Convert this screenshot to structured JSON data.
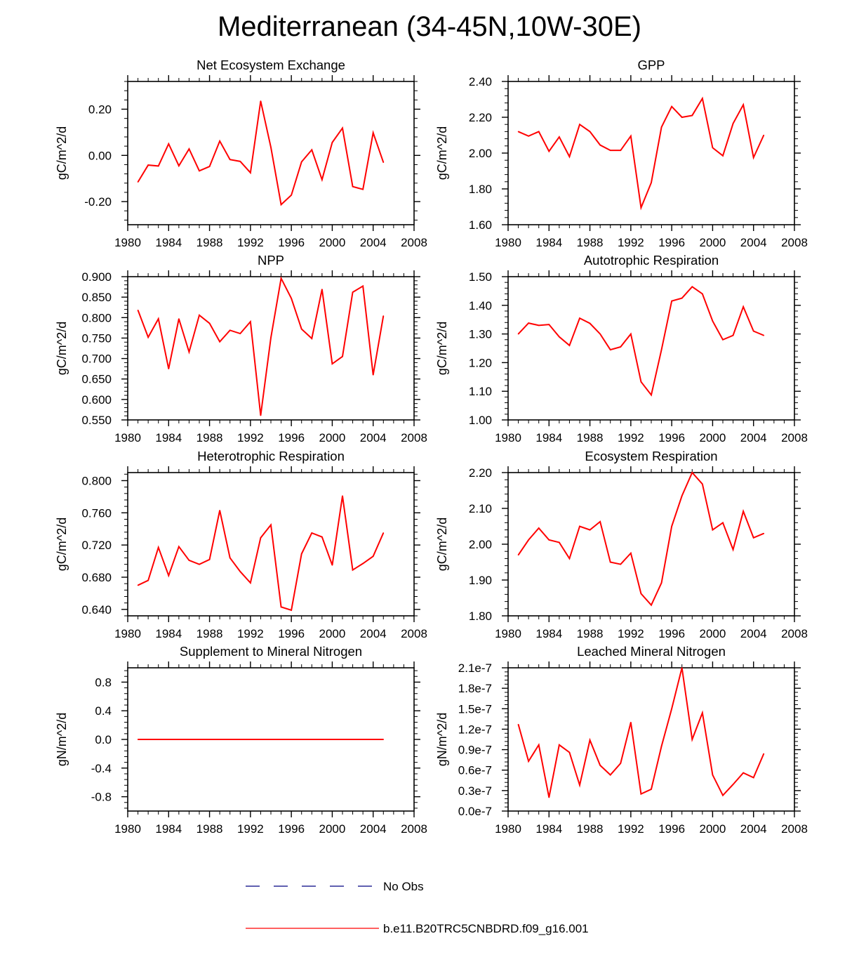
{
  "title": "Mediterranean (34-45N,10W-30E)",
  "colors": {
    "model": "#ff0000",
    "obs": "#000080",
    "axis": "#000000"
  },
  "chart_data": [
    {
      "type": "line",
      "title": "Net Ecosystem Exchange",
      "ylabel": "gC/m^2/d",
      "xlabel": "",
      "xlim": [
        1980,
        2008
      ],
      "xticks": [
        1980,
        1984,
        1988,
        1992,
        1996,
        2000,
        2004,
        2008
      ],
      "ylim": [
        -0.3,
        0.32
      ],
      "yticks": [
        -0.2,
        0.0,
        0.2
      ],
      "ytick_labels": [
        "-0.20",
        "0.00",
        "0.20"
      ],
      "x": [
        1981,
        1982,
        1983,
        1984,
        1985,
        1986,
        1987,
        1988,
        1989,
        1990,
        1991,
        1992,
        1993,
        1994,
        1995,
        1996,
        1997,
        1998,
        1999,
        2000,
        2001,
        2002,
        2003,
        2004,
        2005
      ],
      "series": [
        {
          "name": "b.e11.B20TRC5CNBDRD.f09_g16.001",
          "values": [
            -0.115,
            -0.042,
            -0.046,
            0.05,
            -0.045,
            0.028,
            -0.067,
            -0.048,
            0.062,
            -0.018,
            -0.026,
            -0.075,
            0.235,
            0.035,
            -0.213,
            -0.172,
            -0.028,
            0.024,
            -0.105,
            0.056,
            0.118,
            -0.135,
            -0.147,
            0.098,
            -0.03
          ]
        }
      ]
    },
    {
      "type": "line",
      "title": "GPP",
      "ylabel": "gC/m^2/d",
      "xlabel": "",
      "xlim": [
        1980,
        2008
      ],
      "xticks": [
        1980,
        1984,
        1988,
        1992,
        1996,
        2000,
        2004,
        2008
      ],
      "ylim": [
        1.6,
        2.4
      ],
      "yticks": [
        1.6,
        1.8,
        2.0,
        2.2,
        2.4
      ],
      "ytick_labels": [
        "1.60",
        "1.80",
        "2.00",
        "2.20",
        "2.40"
      ],
      "x": [
        1981,
        1982,
        1983,
        1984,
        1985,
        1986,
        1987,
        1988,
        1989,
        1990,
        1991,
        1992,
        1993,
        1994,
        1995,
        1996,
        1997,
        1998,
        1999,
        2000,
        2001,
        2002,
        2003,
        2004,
        2005
      ],
      "series": [
        {
          "name": "b.e11.B20TRC5CNBDRD.f09_g16.001",
          "values": [
            2.12,
            2.095,
            2.12,
            2.01,
            2.09,
            1.98,
            2.16,
            2.12,
            2.045,
            2.015,
            2.015,
            2.095,
            1.695,
            1.835,
            2.145,
            2.26,
            2.2,
            2.21,
            2.305,
            2.03,
            1.985,
            2.165,
            2.27,
            1.975,
            2.1
          ]
        }
      ]
    },
    {
      "type": "line",
      "title": "NPP",
      "ylabel": "gC/m^2/d",
      "xlabel": "",
      "xlim": [
        1980,
        2008
      ],
      "xticks": [
        1980,
        1984,
        1988,
        1992,
        1996,
        2000,
        2004,
        2008
      ],
      "ylim": [
        0.55,
        0.9
      ],
      "yticks": [
        0.55,
        0.6,
        0.65,
        0.7,
        0.75,
        0.8,
        0.85,
        0.9
      ],
      "ytick_labels": [
        "0.550",
        "0.600",
        "0.650",
        "0.700",
        "0.750",
        "0.800",
        "0.850",
        "0.900"
      ],
      "x": [
        1981,
        1982,
        1983,
        1984,
        1985,
        1986,
        1987,
        1988,
        1989,
        1990,
        1991,
        1992,
        1993,
        1994,
        1995,
        1996,
        1997,
        1998,
        1999,
        2000,
        2001,
        2002,
        2003,
        2004,
        2005
      ],
      "series": [
        {
          "name": "b.e11.B20TRC5CNBDRD.f09_g16.001",
          "values": [
            0.818,
            0.752,
            0.797,
            0.675,
            0.797,
            0.716,
            0.806,
            0.786,
            0.741,
            0.769,
            0.761,
            0.79,
            0.561,
            0.751,
            0.896,
            0.847,
            0.772,
            0.749,
            0.869,
            0.687,
            0.705,
            0.862,
            0.877,
            0.66,
            0.804
          ]
        }
      ]
    },
    {
      "type": "line",
      "title": "Autotrophic Respiration",
      "ylabel": "gC/m^2/d",
      "xlabel": "",
      "xlim": [
        1980,
        2008
      ],
      "xticks": [
        1980,
        1984,
        1988,
        1992,
        1996,
        2000,
        2004,
        2008
      ],
      "ylim": [
        1.0,
        1.5
      ],
      "yticks": [
        1.0,
        1.1,
        1.2,
        1.3,
        1.4,
        1.5
      ],
      "ytick_labels": [
        "1.00",
        "1.10",
        "1.20",
        "1.30",
        "1.40",
        "1.50"
      ],
      "x": [
        1981,
        1982,
        1983,
        1984,
        1985,
        1986,
        1987,
        1988,
        1989,
        1990,
        1991,
        1992,
        1993,
        1994,
        1995,
        1996,
        1997,
        1998,
        1999,
        2000,
        2001,
        2002,
        2003,
        2004,
        2005
      ],
      "series": [
        {
          "name": "b.e11.B20TRC5CNBDRD.f09_g16.001",
          "values": [
            1.3,
            1.338,
            1.33,
            1.333,
            1.29,
            1.26,
            1.355,
            1.337,
            1.3,
            1.245,
            1.255,
            1.3,
            1.133,
            1.087,
            1.245,
            1.415,
            1.425,
            1.465,
            1.44,
            1.345,
            1.28,
            1.295,
            1.395,
            1.31,
            1.295
          ]
        }
      ]
    },
    {
      "type": "line",
      "title": "Heterotrophic Respiration",
      "ylabel": "gC/m^2/d",
      "xlabel": "",
      "xlim": [
        1980,
        2008
      ],
      "xticks": [
        1980,
        1984,
        1988,
        1992,
        1996,
        2000,
        2004,
        2008
      ],
      "ylim": [
        0.632,
        0.81
      ],
      "yticks": [
        0.64,
        0.68,
        0.72,
        0.76,
        0.8
      ],
      "ytick_labels": [
        "0.640",
        "0.680",
        "0.720",
        "0.760",
        "0.800"
      ],
      "x": [
        1981,
        1982,
        1983,
        1984,
        1985,
        1986,
        1987,
        1988,
        1989,
        1990,
        1991,
        1992,
        1993,
        1994,
        1995,
        1996,
        1997,
        1998,
        1999,
        2000,
        2001,
        2002,
        2003,
        2004,
        2005
      ],
      "series": [
        {
          "name": "b.e11.B20TRC5CNBDRD.f09_g16.001",
          "values": [
            0.67,
            0.676,
            0.717,
            0.682,
            0.718,
            0.701,
            0.696,
            0.702,
            0.763,
            0.704,
            0.687,
            0.673,
            0.729,
            0.745,
            0.643,
            0.639,
            0.709,
            0.735,
            0.73,
            0.695,
            0.781,
            0.689,
            0.697,
            0.706,
            0.735
          ]
        }
      ]
    },
    {
      "type": "line",
      "title": "Ecosystem Respiration",
      "ylabel": "gC/m^2/d",
      "xlabel": "",
      "xlim": [
        1980,
        2008
      ],
      "xticks": [
        1980,
        1984,
        1988,
        1992,
        1996,
        2000,
        2004,
        2008
      ],
      "ylim": [
        1.8,
        2.2
      ],
      "yticks": [
        1.8,
        1.9,
        2.0,
        2.1,
        2.2
      ],
      "ytick_labels": [
        "1.80",
        "1.90",
        "2.00",
        "2.10",
        "2.20"
      ],
      "x": [
        1981,
        1982,
        1983,
        1984,
        1985,
        1986,
        1987,
        1988,
        1989,
        1990,
        1991,
        1992,
        1993,
        1994,
        1995,
        1996,
        1997,
        1998,
        1999,
        2000,
        2001,
        2002,
        2003,
        2004,
        2005
      ],
      "series": [
        {
          "name": "b.e11.B20TRC5CNBDRD.f09_g16.001",
          "values": [
            1.97,
            2.012,
            2.045,
            2.012,
            2.005,
            1.96,
            2.05,
            2.04,
            2.063,
            1.95,
            1.944,
            1.975,
            1.862,
            1.83,
            1.892,
            2.05,
            2.135,
            2.2,
            2.168,
            2.04,
            2.06,
            1.985,
            2.092,
            2.018,
            2.03
          ]
        }
      ]
    },
    {
      "type": "line",
      "title": "Supplement to Mineral Nitrogen",
      "ylabel": "gN/m^2/d",
      "xlabel": "",
      "xlim": [
        1980,
        2008
      ],
      "xticks": [
        1980,
        1984,
        1988,
        1992,
        1996,
        2000,
        2004,
        2008
      ],
      "ylim": [
        -1.0,
        1.0
      ],
      "yticks": [
        -0.8,
        -0.4,
        0.0,
        0.4,
        0.8
      ],
      "ytick_labels": [
        "-0.8",
        "-0.4",
        "0.0",
        "0.4",
        "0.8"
      ],
      "x": [
        1981,
        1982,
        1983,
        1984,
        1985,
        1986,
        1987,
        1988,
        1989,
        1990,
        1991,
        1992,
        1993,
        1994,
        1995,
        1996,
        1997,
        1998,
        1999,
        2000,
        2001,
        2002,
        2003,
        2004,
        2005
      ],
      "series": [
        {
          "name": "b.e11.B20TRC5CNBDRD.f09_g16.001",
          "values": [
            0,
            0,
            0,
            0,
            0,
            0,
            0,
            0,
            0,
            0,
            0,
            0,
            0,
            0,
            0,
            0,
            0,
            0,
            0,
            0,
            0,
            0,
            0,
            0,
            0
          ]
        }
      ]
    },
    {
      "type": "line",
      "title": "Leached Mineral Nitrogen",
      "ylabel": "gN/m^2/d",
      "xlabel": "",
      "xlim": [
        1980,
        2008
      ],
      "xticks": [
        1980,
        1984,
        1988,
        1992,
        1996,
        2000,
        2004,
        2008
      ],
      "ylim": [
        0,
        2.1e-07
      ],
      "yticks": [
        0,
        3e-08,
        6e-08,
        9e-08,
        1.2e-07,
        1.5e-07,
        1.8e-07,
        2.1e-07
      ],
      "ytick_labels": [
        "0.0e-7",
        "0.3e-7",
        "0.6e-7",
        "0.9e-7",
        "1.2e-7",
        "1.5e-7",
        "1.8e-7",
        "2.1e-7"
      ],
      "x": [
        1981,
        1982,
        1983,
        1984,
        1985,
        1986,
        1987,
        1988,
        1989,
        1990,
        1991,
        1992,
        1993,
        1994,
        1995,
        1996,
        1997,
        1998,
        1999,
        2000,
        2001,
        2002,
        2003,
        2004,
        2005
      ],
      "series": [
        {
          "name": "b.e11.B20TRC5CNBDRD.f09_g16.001",
          "values": [
            1.27e-07,
            7.3e-08,
            9.7e-08,
            2e-08,
            9.7e-08,
            8.6e-08,
            3.8e-08,
            1.04e-07,
            6.7e-08,
            5.3e-08,
            7e-08,
            1.3e-07,
            2.5e-08,
            3.2e-08,
            9.5e-08,
            1.5e-07,
            2.1e-07,
            1.05e-07,
            1.44e-07,
            5.3e-08,
            2.3e-08,
            3.9e-08,
            5.6e-08,
            4.9e-08,
            8.4e-08
          ]
        }
      ]
    }
  ],
  "legend": {
    "position": "bottom-center",
    "entries": [
      {
        "label": "No Obs",
        "style": "dashed"
      },
      {
        "label": "b.e11.B20TRC5CNBDRD.f09_g16.001",
        "style": "solid"
      }
    ]
  }
}
